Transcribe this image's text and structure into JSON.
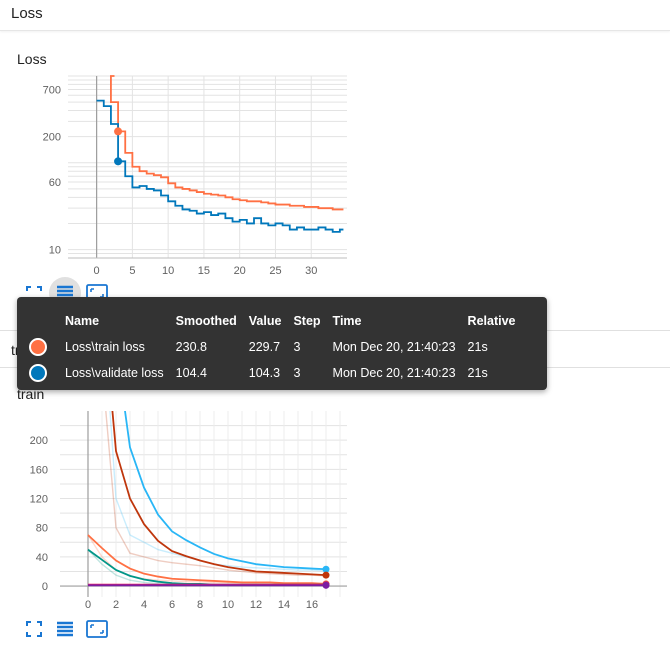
{
  "sections": {
    "loss_header": "Loss",
    "train_header": "train"
  },
  "charts": {
    "loss_title": "Loss",
    "train_title": "train"
  },
  "tooltip": {
    "columns": [
      "",
      "Name",
      "Smoothed",
      "Value",
      "Step",
      "Time",
      "Relative"
    ],
    "rows": [
      {
        "color": "#ff7043",
        "name": "Loss\\train loss",
        "smoothed": "230.8",
        "value": "229.7",
        "step": "3",
        "time": "Mon Dec 20, 21:40:23",
        "relative": "21s"
      },
      {
        "color": "#0077bb",
        "name": "Loss\\validate loss",
        "smoothed": "104.4",
        "value": "104.3",
        "step": "3",
        "time": "Mon Dec 20, 21:40:23",
        "relative": "21s"
      }
    ]
  },
  "colors": {
    "accent": "#1976d2",
    "train": "#ff7043",
    "validate": "#0077bb"
  },
  "icons": [
    "fit-domain-icon",
    "toggle-log-scale-icon",
    "expand-icon"
  ],
  "chart_data": [
    {
      "type": "line",
      "title": "Loss",
      "y_scale": "log",
      "ylim": [
        8,
        1000
      ],
      "xlim": [
        -4,
        35
      ],
      "x_ticks": [
        0,
        5,
        10,
        15,
        20,
        25,
        30
      ],
      "y_ticks": [
        10,
        60,
        200,
        700
      ],
      "series": [
        {
          "name": "Loss\\train loss",
          "color": "#ff7043",
          "points": [
            [
              2,
              1000
            ],
            [
              2,
              500
            ],
            [
              3,
              230
            ],
            [
              4,
              130
            ],
            [
              5,
              90
            ],
            [
              6,
              80
            ],
            [
              7,
              75
            ],
            [
              8,
              72
            ],
            [
              9,
              68
            ],
            [
              10,
              58
            ],
            [
              11,
              52
            ],
            [
              12,
              50
            ],
            [
              13,
              48
            ],
            [
              14,
              46
            ],
            [
              15,
              44
            ],
            [
              16,
              43
            ],
            [
              17,
              42
            ],
            [
              18,
              40
            ],
            [
              19,
              38
            ],
            [
              20,
              37
            ],
            [
              21,
              36
            ],
            [
              22,
              36
            ],
            [
              23,
              35
            ],
            [
              24,
              34
            ],
            [
              25,
              33
            ],
            [
              26,
              33
            ],
            [
              27,
              32
            ],
            [
              28,
              32
            ],
            [
              29,
              31
            ],
            [
              30,
              31
            ],
            [
              31,
              30
            ],
            [
              32,
              30
            ],
            [
              33,
              29
            ],
            [
              34,
              29
            ]
          ]
        },
        {
          "name": "Loss\\validate loss",
          "color": "#0077bb",
          "points": [
            [
              0,
              520
            ],
            [
              1,
              450
            ],
            [
              2,
              280
            ],
            [
              3,
              104
            ],
            [
              4,
              70
            ],
            [
              5,
              52
            ],
            [
              6,
              54
            ],
            [
              7,
              50
            ],
            [
              8,
              48
            ],
            [
              9,
              42
            ],
            [
              10,
              36
            ],
            [
              11,
              32
            ],
            [
              12,
              29
            ],
            [
              13,
              28
            ],
            [
              14,
              26
            ],
            [
              15,
              27
            ],
            [
              16,
              25
            ],
            [
              17,
              26
            ],
            [
              18,
              23
            ],
            [
              19,
              21
            ],
            [
              20,
              22
            ],
            [
              21,
              20
            ],
            [
              22,
              23
            ],
            [
              23,
              20
            ],
            [
              24,
              19
            ],
            [
              25,
              20
            ],
            [
              26,
              19
            ],
            [
              27,
              17
            ],
            [
              28,
              18
            ],
            [
              29,
              17
            ],
            [
              30,
              17
            ],
            [
              31,
              18
            ],
            [
              32,
              17
            ],
            [
              33,
              16
            ],
            [
              34,
              17
            ]
          ]
        }
      ]
    },
    {
      "type": "line",
      "title": "train",
      "ylim": [
        -15,
        240
      ],
      "xlim": [
        -2,
        18.5
      ],
      "x_ticks": [
        0,
        2,
        4,
        6,
        8,
        10,
        12,
        14,
        16
      ],
      "y_ticks": [
        0,
        40,
        80,
        120,
        160,
        200
      ],
      "series": [
        {
          "color": "#29b6f6",
          "raw": [
            [
              0,
              800
            ],
            [
              1,
              400
            ],
            [
              2,
              120
            ],
            [
              3,
              70
            ],
            [
              4,
              60
            ],
            [
              5,
              50
            ],
            [
              6,
              45
            ],
            [
              7,
              40
            ],
            [
              8,
              35
            ],
            [
              9,
              30
            ],
            [
              10,
              28
            ],
            [
              11,
              26
            ],
            [
              12,
              25
            ],
            [
              13,
              24
            ],
            [
              14,
              23
            ],
            [
              15,
              22
            ],
            [
              16,
              22
            ],
            [
              17,
              21
            ]
          ],
          "smoothed": [
            [
              0,
              800
            ],
            [
              1,
              500
            ],
            [
              2,
              330
            ],
            [
              3,
              190
            ],
            [
              4,
              135
            ],
            [
              5,
              98
            ],
            [
              6,
              75
            ],
            [
              7,
              63
            ],
            [
              8,
              53
            ],
            [
              9,
              44
            ],
            [
              10,
              38
            ],
            [
              11,
              34
            ],
            [
              12,
              30
            ],
            [
              13,
              28
            ],
            [
              14,
              26
            ],
            [
              15,
              25
            ],
            [
              16,
              24
            ],
            [
              17,
              23
            ]
          ]
        },
        {
          "color": "#bf360c",
          "raw": [
            [
              0,
              700
            ],
            [
              1,
              300
            ],
            [
              2,
              80
            ],
            [
              3,
              45
            ],
            [
              4,
              40
            ],
            [
              5,
              35
            ],
            [
              6,
              32
            ],
            [
              7,
              30
            ],
            [
              8,
              28
            ],
            [
              9,
              25
            ],
            [
              10,
              22
            ],
            [
              11,
              20
            ],
            [
              12,
              18
            ],
            [
              13,
              17
            ],
            [
              14,
              16
            ],
            [
              15,
              15
            ],
            [
              16,
              15
            ],
            [
              17,
              14
            ]
          ],
          "smoothed": [
            [
              0,
              700
            ],
            [
              1,
              400
            ],
            [
              2,
              185
            ],
            [
              3,
              120
            ],
            [
              4,
              85
            ],
            [
              5,
              62
            ],
            [
              6,
              48
            ],
            [
              7,
              41
            ],
            [
              8,
              35
            ],
            [
              9,
              30
            ],
            [
              10,
              26
            ],
            [
              11,
              23
            ],
            [
              12,
              20
            ],
            [
              13,
              19
            ],
            [
              14,
              18
            ],
            [
              15,
              17
            ],
            [
              16,
              16
            ],
            [
              17,
              15
            ]
          ]
        },
        {
          "color": "#ff7043",
          "raw": [
            [
              0,
              70
            ],
            [
              1,
              40
            ],
            [
              2,
              22
            ],
            [
              3,
              14
            ],
            [
              4,
              10
            ],
            [
              5,
              8
            ],
            [
              6,
              7
            ],
            [
              7,
              6
            ],
            [
              8,
              6
            ],
            [
              9,
              5
            ],
            [
              10,
              5
            ],
            [
              11,
              4
            ],
            [
              12,
              4
            ],
            [
              13,
              4
            ],
            [
              14,
              4
            ],
            [
              15,
              3
            ],
            [
              16,
              3
            ],
            [
              17,
              3
            ]
          ],
          "smoothed": [
            [
              0,
              70
            ],
            [
              1,
              52
            ],
            [
              2,
              35
            ],
            [
              3,
              24
            ],
            [
              4,
              17
            ],
            [
              5,
              13
            ],
            [
              6,
              10
            ],
            [
              7,
              9
            ],
            [
              8,
              8
            ],
            [
              9,
              7
            ],
            [
              10,
              6
            ],
            [
              11,
              5
            ],
            [
              12,
              5
            ],
            [
              13,
              5
            ],
            [
              14,
              4
            ],
            [
              15,
              4
            ],
            [
              16,
              4
            ],
            [
              17,
              3
            ]
          ]
        },
        {
          "color": "#009688",
          "raw": [
            [
              0,
              50
            ],
            [
              1,
              30
            ],
            [
              2,
              15
            ],
            [
              3,
              8
            ],
            [
              4,
              5
            ],
            [
              5,
              3
            ],
            [
              6,
              3
            ],
            [
              7,
              2
            ],
            [
              8,
              2
            ],
            [
              9,
              2
            ],
            [
              10,
              2
            ],
            [
              11,
              2
            ],
            [
              12,
              2
            ],
            [
              13,
              2
            ],
            [
              14,
              2
            ],
            [
              15,
              2
            ],
            [
              16,
              2
            ],
            [
              17,
              2
            ]
          ],
          "smoothed": [
            [
              0,
              50
            ],
            [
              1,
              36
            ],
            [
              2,
              22
            ],
            [
              3,
              14
            ],
            [
              4,
              9
            ],
            [
              5,
              6
            ],
            [
              6,
              4
            ],
            [
              7,
              3
            ],
            [
              8,
              3
            ],
            [
              9,
              2
            ],
            [
              10,
              2
            ],
            [
              11,
              2
            ],
            [
              12,
              2
            ],
            [
              13,
              2
            ],
            [
              14,
              2
            ],
            [
              15,
              2
            ],
            [
              16,
              2
            ],
            [
              17,
              2
            ]
          ]
        },
        {
          "color": "#e91e63",
          "raw": [
            [
              0,
              2
            ],
            [
              2,
              2
            ],
            [
              4,
              2
            ],
            [
              6,
              2
            ],
            [
              8,
              2
            ],
            [
              10,
              2
            ],
            [
              12,
              2
            ],
            [
              14,
              2
            ],
            [
              16,
              2
            ],
            [
              17,
              2
            ]
          ],
          "smoothed": [
            [
              0,
              2
            ],
            [
              2,
              2
            ],
            [
              4,
              2
            ],
            [
              6,
              2
            ],
            [
              8,
              2
            ],
            [
              10,
              2
            ],
            [
              12,
              2
            ],
            [
              14,
              2
            ],
            [
              16,
              2
            ],
            [
              17,
              2
            ]
          ]
        },
        {
          "color": "#7b1fa2",
          "raw": [
            [
              0,
              1
            ],
            [
              4,
              1
            ],
            [
              8,
              1
            ],
            [
              12,
              1
            ],
            [
              17,
              1
            ]
          ],
          "smoothed": [
            [
              0,
              1
            ],
            [
              4,
              1
            ],
            [
              8,
              1
            ],
            [
              12,
              1
            ],
            [
              17,
              1
            ]
          ]
        }
      ]
    }
  ]
}
